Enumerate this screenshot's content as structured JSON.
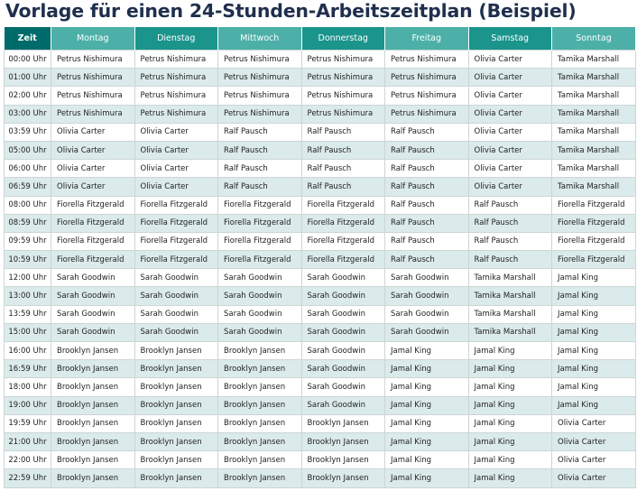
{
  "title": "Vorlage für einen 24-Stunden-Arbeitszeitplan (Beispiel)",
  "header": {
    "time": "Zeit",
    "days": [
      "Montag",
      "Dienstag",
      "Mittwoch",
      "Donnerstag",
      "Freitag",
      "Samstag",
      "Sonntag"
    ]
  },
  "rows": [
    {
      "time": "00:00 Uhr",
      "cells": [
        "Petrus Nishimura",
        "Petrus Nishimura",
        "Petrus Nishimura",
        "Petrus Nishimura",
        "Petrus Nishimura",
        "Olivia Carter",
        "Tamika Marshall"
      ]
    },
    {
      "time": "01:00 Uhr",
      "cells": [
        "Petrus Nishimura",
        "Petrus Nishimura",
        "Petrus Nishimura",
        "Petrus Nishimura",
        "Petrus Nishimura",
        "Olivia Carter",
        "Tamika Marshall"
      ]
    },
    {
      "time": "02:00 Uhr",
      "cells": [
        "Petrus Nishimura",
        "Petrus Nishimura",
        "Petrus Nishimura",
        "Petrus Nishimura",
        "Petrus Nishimura",
        "Olivia Carter",
        "Tamika Marshall"
      ]
    },
    {
      "time": "03:00 Uhr",
      "cells": [
        "Petrus Nishimura",
        "Petrus Nishimura",
        "Petrus Nishimura",
        "Petrus Nishimura",
        "Petrus Nishimura",
        "Olivia Carter",
        "Tamika Marshall"
      ]
    },
    {
      "time": "03:59 Uhr",
      "cells": [
        "Olivia Carter",
        "Olivia Carter",
        "Ralf Pausch",
        "Ralf Pausch",
        "Ralf Pausch",
        "Olivia Carter",
        "Tamika Marshall"
      ]
    },
    {
      "time": "05:00 Uhr",
      "cells": [
        "Olivia Carter",
        "Olivia Carter",
        "Ralf Pausch",
        "Ralf Pausch",
        "Ralf Pausch",
        "Olivia Carter",
        "Tamika Marshall"
      ]
    },
    {
      "time": "06:00 Uhr",
      "cells": [
        "Olivia Carter",
        "Olivia Carter",
        "Ralf Pausch",
        "Ralf Pausch",
        "Ralf Pausch",
        "Olivia Carter",
        "Tamika Marshall"
      ]
    },
    {
      "time": "06:59 Uhr",
      "cells": [
        "Olivia Carter",
        "Olivia Carter",
        "Ralf Pausch",
        "Ralf Pausch",
        "Ralf Pausch",
        "Olivia Carter",
        "Tamika Marshall"
      ]
    },
    {
      "time": "08:00 Uhr",
      "cells": [
        "Fiorella Fitzgerald",
        "Fiorella Fitzgerald",
        "Fiorella Fitzgerald",
        "Fiorella Fitzgerald",
        "Ralf Pausch",
        "Ralf Pausch",
        "Fiorella Fitzgerald"
      ]
    },
    {
      "time": "08:59 Uhr",
      "cells": [
        "Fiorella Fitzgerald",
        "Fiorella Fitzgerald",
        "Fiorella Fitzgerald",
        "Fiorella Fitzgerald",
        "Ralf Pausch",
        "Ralf Pausch",
        "Fiorella Fitzgerald"
      ]
    },
    {
      "time": "09:59 Uhr",
      "cells": [
        "Fiorella Fitzgerald",
        "Fiorella Fitzgerald",
        "Fiorella Fitzgerald",
        "Fiorella Fitzgerald",
        "Ralf Pausch",
        "Ralf Pausch",
        "Fiorella Fitzgerald"
      ]
    },
    {
      "time": "10:59 Uhr",
      "cells": [
        "Fiorella Fitzgerald",
        "Fiorella Fitzgerald",
        "Fiorella Fitzgerald",
        "Fiorella Fitzgerald",
        "Ralf Pausch",
        "Ralf Pausch",
        "Fiorella Fitzgerald"
      ]
    },
    {
      "time": "12:00 Uhr",
      "cells": [
        "Sarah Goodwin",
        "Sarah Goodwin",
        "Sarah Goodwin",
        "Sarah Goodwin",
        "Sarah Goodwin",
        "Tamika Marshall",
        "Jamal King"
      ]
    },
    {
      "time": "13:00 Uhr",
      "cells": [
        "Sarah Goodwin",
        "Sarah Goodwin",
        "Sarah Goodwin",
        "Sarah Goodwin",
        "Sarah Goodwin",
        "Tamika Marshall",
        "Jamal King"
      ]
    },
    {
      "time": "13:59 Uhr",
      "cells": [
        "Sarah Goodwin",
        "Sarah Goodwin",
        "Sarah Goodwin",
        "Sarah Goodwin",
        "Sarah Goodwin",
        "Tamika Marshall",
        "Jamal King"
      ]
    },
    {
      "time": "15:00 Uhr",
      "cells": [
        "Sarah Goodwin",
        "Sarah Goodwin",
        "Sarah Goodwin",
        "Sarah Goodwin",
        "Sarah Goodwin",
        "Tamika Marshall",
        "Jamal King"
      ]
    },
    {
      "time": "16:00 Uhr",
      "cells": [
        "Brooklyn Jansen",
        "Brooklyn Jansen",
        "Brooklyn Jansen",
        "Sarah Goodwin",
        "Jamal King",
        "Jamal King",
        "Jamal King"
      ]
    },
    {
      "time": "16:59 Uhr",
      "cells": [
        "Brooklyn Jansen",
        "Brooklyn Jansen",
        "Brooklyn Jansen",
        "Sarah Goodwin",
        "Jamal King",
        "Jamal King",
        "Jamal King"
      ]
    },
    {
      "time": "18:00 Uhr",
      "cells": [
        "Brooklyn Jansen",
        "Brooklyn Jansen",
        "Brooklyn Jansen",
        "Sarah Goodwin",
        "Jamal King",
        "Jamal King",
        "Jamal King"
      ]
    },
    {
      "time": "19:00 Uhr",
      "cells": [
        "Brooklyn Jansen",
        "Brooklyn Jansen",
        "Brooklyn Jansen",
        "Sarah Goodwin",
        "Jamal King",
        "Jamal King",
        "Jamal King"
      ]
    },
    {
      "time": "19:59 Uhr",
      "cells": [
        "Brooklyn Jansen",
        "Brooklyn Jansen",
        "Brooklyn Jansen",
        "Brooklyn Jansen",
        "Jamal King",
        "Jamal King",
        "Olivia Carter"
      ]
    },
    {
      "time": "21:00 Uhr",
      "cells": [
        "Brooklyn Jansen",
        "Brooklyn Jansen",
        "Brooklyn Jansen",
        "Brooklyn Jansen",
        "Jamal King",
        "Jamal King",
        "Olivia Carter"
      ]
    },
    {
      "time": "22:00 Uhr",
      "cells": [
        "Brooklyn Jansen",
        "Brooklyn Jansen",
        "Brooklyn Jansen",
        "Brooklyn Jansen",
        "Jamal King",
        "Jamal King",
        "Olivia Carter"
      ]
    },
    {
      "time": "22:59 Uhr",
      "cells": [
        "Brooklyn Jansen",
        "Brooklyn Jansen",
        "Brooklyn Jansen",
        "Brooklyn Jansen",
        "Jamal King",
        "Jamal King",
        "Olivia Carter"
      ]
    }
  ],
  "colors": {
    "title": "#1f2f4d",
    "header_time": "#006b6b",
    "header_dark": "#1b948c",
    "header_light": "#4cb0a8",
    "row_alt": "#dbeaea"
  }
}
